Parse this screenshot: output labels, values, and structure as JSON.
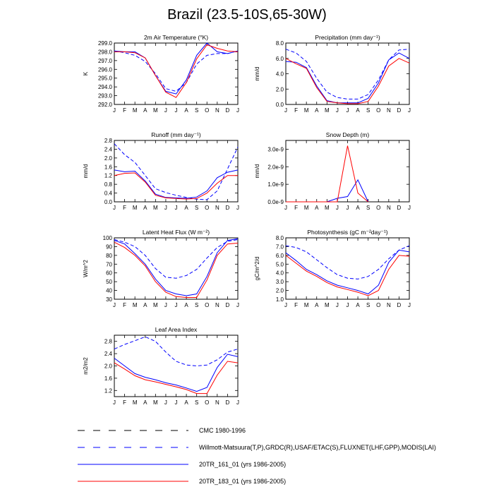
{
  "title": "Brazil (23.5-10S,65-30W)",
  "months": [
    "J",
    "F",
    "M",
    "A",
    "M",
    "J",
    "J",
    "A",
    "S",
    "O",
    "N",
    "D",
    "J"
  ],
  "series_styles": [
    {
      "key": "cmc",
      "color": "#000000",
      "dash": true
    },
    {
      "key": "obs",
      "color": "#0000ff",
      "dash": true
    },
    {
      "key": "r161",
      "color": "#0000ff",
      "dash": false
    },
    {
      "key": "r183",
      "color": "#ff0000",
      "dash": false
    }
  ],
  "legend": [
    {
      "key": "cmc",
      "label": "CMC 1980-1996"
    },
    {
      "key": "obs",
      "label": "Willmott-Matsuura(T,P),GRDC(R),USAF/ETAC(S),FLUXNET(LHF,GPP),MODIS(LAI)"
    },
    {
      "key": "r161",
      "label": "20TR_161_01 (yrs 1986-2005)"
    },
    {
      "key": "r183",
      "label": "20TR_183_01 (yrs 1986-2005)"
    }
  ],
  "chart_data": [
    {
      "id": "temp",
      "type": "line",
      "title": "2m Air Temperature (°K)",
      "ylabel": "K",
      "ylim": [
        292,
        299
      ],
      "yticks": [
        292,
        293,
        294,
        295,
        296,
        297,
        298,
        299
      ],
      "yticklabels": [
        "292.0",
        "293.0",
        "294.0",
        "295.0",
        "296.0",
        "297.0",
        "298.0",
        "299.0"
      ],
      "series": [
        {
          "key": "obs",
          "values": [
            298.1,
            297.9,
            297.6,
            296.9,
            295.5,
            293.8,
            293.5,
            294.5,
            296.6,
            297.6,
            297.8,
            297.8,
            298.1
          ]
        },
        {
          "key": "r161",
          "values": [
            298.1,
            298.0,
            298.0,
            297.3,
            295.3,
            293.5,
            293.2,
            294.8,
            297.6,
            299.0,
            298.0,
            297.8,
            298.1
          ]
        },
        {
          "key": "r183",
          "values": [
            298.0,
            298.0,
            297.9,
            297.3,
            295.3,
            293.4,
            292.8,
            294.5,
            297.2,
            298.8,
            298.4,
            298.1,
            298.0
          ]
        }
      ]
    },
    {
      "id": "precip",
      "type": "line",
      "title": "Precipitation (mm day⁻¹)",
      "ylabel": "mm/d",
      "ylim": [
        0,
        8
      ],
      "yticks": [
        0,
        2,
        4,
        6,
        8
      ],
      "yticklabels": [
        "0.0",
        "2.0",
        "4.0",
        "6.0",
        "8.0"
      ],
      "series": [
        {
          "key": "obs",
          "values": [
            7.2,
            6.7,
            5.6,
            3.4,
            1.6,
            0.9,
            0.7,
            0.7,
            1.3,
            3.2,
            5.8,
            7.1,
            7.2
          ]
        },
        {
          "key": "r161",
          "values": [
            5.6,
            5.5,
            4.8,
            2.4,
            0.5,
            0.2,
            0.2,
            0.2,
            0.8,
            2.8,
            5.8,
            6.7,
            6.0
          ]
        },
        {
          "key": "r183",
          "values": [
            6.0,
            5.3,
            4.7,
            2.2,
            0.4,
            0.2,
            0.1,
            0.1,
            0.4,
            2.4,
            5.0,
            6.0,
            5.4
          ]
        }
      ]
    },
    {
      "id": "runoff",
      "type": "line",
      "title": "Runoff (mm day⁻¹)",
      "ylabel": "mm/d",
      "ylim": [
        0,
        2.8
      ],
      "yticks": [
        0,
        0.4,
        0.8,
        1.2,
        1.6,
        2.0,
        2.4,
        2.8
      ],
      "yticklabels": [
        "0.0",
        "0.4",
        "0.8",
        "1.2",
        "1.6",
        "2.0",
        "2.4",
        "2.8"
      ],
      "series": [
        {
          "key": "obs",
          "values": [
            2.65,
            2.15,
            1.8,
            1.2,
            0.6,
            0.42,
            0.3,
            0.2,
            0.12,
            0.1,
            0.5,
            1.5,
            2.5
          ]
        },
        {
          "key": "r161",
          "values": [
            1.45,
            1.37,
            1.4,
            0.95,
            0.35,
            0.2,
            0.18,
            0.16,
            0.22,
            0.5,
            1.1,
            1.35,
            1.45
          ]
        },
        {
          "key": "r183",
          "values": [
            1.2,
            1.3,
            1.32,
            0.9,
            0.3,
            0.18,
            0.15,
            0.13,
            0.15,
            0.4,
            0.85,
            1.2,
            1.2
          ]
        }
      ]
    },
    {
      "id": "snow",
      "type": "line",
      "title": "Snow Depth (m)",
      "ylabel": "mm/d",
      "ylim": [
        0,
        3.5e-09
      ],
      "yticks": [
        0,
        1e-09,
        2e-09,
        3e-09
      ],
      "yticklabels": [
        "0.0e-9",
        "1.0e-9",
        "2.0e-9",
        "3.0e-9"
      ],
      "series": [
        {
          "key": "r161",
          "values": [
            0,
            0,
            0,
            0,
            0,
            2e-10,
            3e-10,
            1.25e-09,
            0,
            null,
            null,
            null,
            null
          ]
        },
        {
          "key": "r183",
          "values": [
            0,
            0,
            0,
            0,
            0,
            0,
            3.2e-09,
            5e-10,
            0,
            null,
            null,
            null,
            null
          ]
        }
      ]
    },
    {
      "id": "lhf",
      "type": "line",
      "title": "Latent Heat Flux (W m⁻²)",
      "ylabel": "W/m^2",
      "ylim": [
        30,
        100
      ],
      "yticks": [
        30,
        40,
        50,
        60,
        70,
        80,
        90,
        100
      ],
      "yticklabels": [
        "30",
        "40",
        "50",
        "60",
        "70",
        "80",
        "90",
        "100"
      ],
      "series": [
        {
          "key": "obs",
          "values": [
            98,
            95,
            90,
            80,
            65,
            55,
            54,
            57,
            64,
            77,
            89,
            96,
            98
          ]
        },
        {
          "key": "r161",
          "values": [
            97,
            93,
            82,
            70,
            53,
            40,
            36,
            34,
            36,
            56,
            83,
            97,
            99
          ]
        },
        {
          "key": "r183",
          "values": [
            95,
            89,
            80,
            68,
            50,
            38,
            33,
            32,
            32,
            52,
            80,
            93,
            94
          ]
        }
      ]
    },
    {
      "id": "gpp",
      "type": "line",
      "title": "Photosynthesis (gC m⁻²day⁻¹)",
      "ylabel": "gC/m^2/d",
      "ylim": [
        1,
        8
      ],
      "yticks": [
        1,
        2,
        3,
        4,
        5,
        6,
        7,
        8
      ],
      "yticklabels": [
        "1.0",
        "2.0",
        "3.0",
        "4.0",
        "5.0",
        "6.0",
        "7.0",
        "8.0"
      ],
      "series": [
        {
          "key": "obs",
          "values": [
            7.1,
            6.9,
            6.4,
            5.5,
            4.6,
            3.8,
            3.4,
            3.3,
            3.6,
            4.4,
            5.6,
            6.6,
            7.1
          ]
        },
        {
          "key": "r161",
          "values": [
            6.3,
            5.4,
            4.4,
            3.8,
            3.1,
            2.6,
            2.3,
            2.0,
            1.6,
            2.6,
            5.2,
            6.6,
            6.4
          ]
        },
        {
          "key": "r183",
          "values": [
            6.0,
            5.1,
            4.2,
            3.6,
            2.9,
            2.4,
            2.1,
            1.8,
            1.4,
            2.0,
            4.4,
            6.0,
            5.9
          ]
        }
      ]
    },
    {
      "id": "lai",
      "type": "line",
      "title": "Leaf Area Index",
      "ylabel": "m2/m2",
      "ylim": [
        1.0,
        3.0
      ],
      "yticks": [
        1.2,
        1.6,
        2.0,
        2.4,
        2.8
      ],
      "yticklabels": [
        "1.2",
        "1.6",
        "2.0",
        "2.4",
        "2.8"
      ],
      "series": [
        {
          "key": "obs",
          "values": [
            2.55,
            2.7,
            2.82,
            2.95,
            2.8,
            2.45,
            2.15,
            2.03,
            2.0,
            2.03,
            2.2,
            2.45,
            2.55
          ]
        },
        {
          "key": "r161",
          "values": [
            2.25,
            2.0,
            1.75,
            1.63,
            1.55,
            1.45,
            1.38,
            1.28,
            1.17,
            1.3,
            1.95,
            2.38,
            2.3
          ]
        },
        {
          "key": "r183",
          "values": [
            2.1,
            1.9,
            1.68,
            1.55,
            1.48,
            1.4,
            1.32,
            1.23,
            1.1,
            1.1,
            1.7,
            2.15,
            2.1
          ]
        }
      ]
    }
  ]
}
